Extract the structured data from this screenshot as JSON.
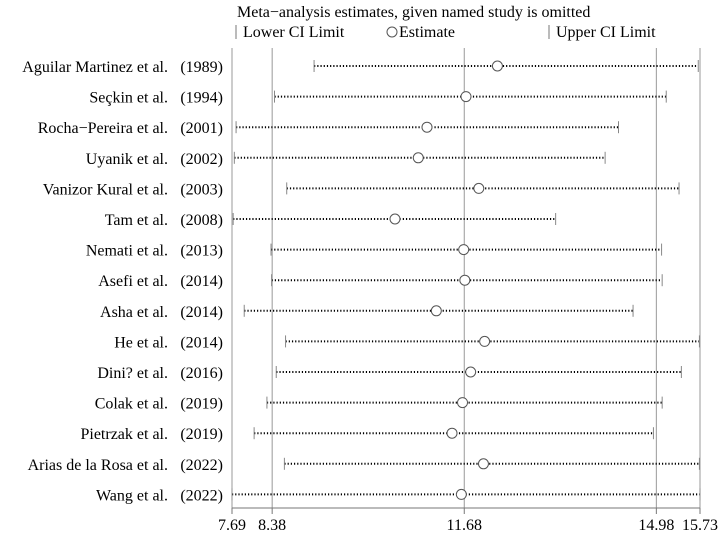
{
  "chart_data": {
    "type": "forest",
    "title": "Meta−analysis estimates, given named study is omitted",
    "legend": {
      "lower": "Lower CI Limit",
      "estimate": "Estimate",
      "upper": "Upper CI Limit",
      "placement": "top"
    },
    "x_ticks": [
      {
        "value": 7.69,
        "label": "7.69"
      },
      {
        "value": 8.38,
        "label": "8.38"
      },
      {
        "value": 11.68,
        "label": "11.68"
      },
      {
        "value": 14.98,
        "label": "14.98"
      },
      {
        "value": 15.73,
        "label": "15.73"
      }
    ],
    "xlim": [
      7.69,
      15.73
    ],
    "reference_lines": [
      8.38,
      11.68,
      14.98
    ],
    "studies": [
      {
        "name": "Aguilar Martinez et al.",
        "year": "(1989)",
        "lower": 9.1,
        "estimate": 12.25,
        "upper": 15.7
      },
      {
        "name": "Seçkin et al.",
        "year": "(1994)",
        "lower": 8.42,
        "estimate": 11.71,
        "upper": 15.15
      },
      {
        "name": "Rocha−Pereira et al. ",
        "year": "(2001)",
        "lower": 7.76,
        "estimate": 11.04,
        "upper": 14.33
      },
      {
        "name": "Uyanik et al.",
        "year": "(2002)",
        "lower": 7.73,
        "estimate": 10.89,
        "upper": 14.1
      },
      {
        "name": "Vanizor Kural et al.",
        "year": "(2003)",
        "lower": 8.63,
        "estimate": 11.93,
        "upper": 15.37
      },
      {
        "name": "Tam et al.",
        "year": "(2008)",
        "lower": 7.71,
        "estimate": 10.49,
        "upper": 13.25
      },
      {
        "name": "Nemati et al.",
        "year": "(2013)",
        "lower": 8.36,
        "estimate": 11.67,
        "upper": 15.07
      },
      {
        "name": "Asefi et al.",
        "year": "(2014)",
        "lower": 8.37,
        "estimate": 11.69,
        "upper": 15.08
      },
      {
        "name": "Asha et al.",
        "year": "(2014)",
        "lower": 7.9,
        "estimate": 11.2,
        "upper": 14.58
      },
      {
        "name": "He et al.",
        "year": "(2014)",
        "lower": 8.61,
        "estimate": 12.03,
        "upper": 15.72
      },
      {
        "name": "Dini? et al.",
        "year": "(2016)",
        "lower": 8.45,
        "estimate": 11.79,
        "upper": 15.41
      },
      {
        "name": "Colak et al.",
        "year": "(2019)",
        "lower": 8.29,
        "estimate": 11.65,
        "upper": 15.08
      },
      {
        "name": "Pietrzak et al.",
        "year": "(2019)",
        "lower": 8.07,
        "estimate": 11.47,
        "upper": 14.93
      },
      {
        "name": "Arias de la Rosa et al.",
        "year": "(2022)",
        "lower": 8.59,
        "estimate": 12.01,
        "upper": 15.72
      },
      {
        "name": "Wang et al.",
        "year": "(2022)",
        "lower": 7.69,
        "estimate": 11.63,
        "upper": 15.73
      }
    ]
  }
}
